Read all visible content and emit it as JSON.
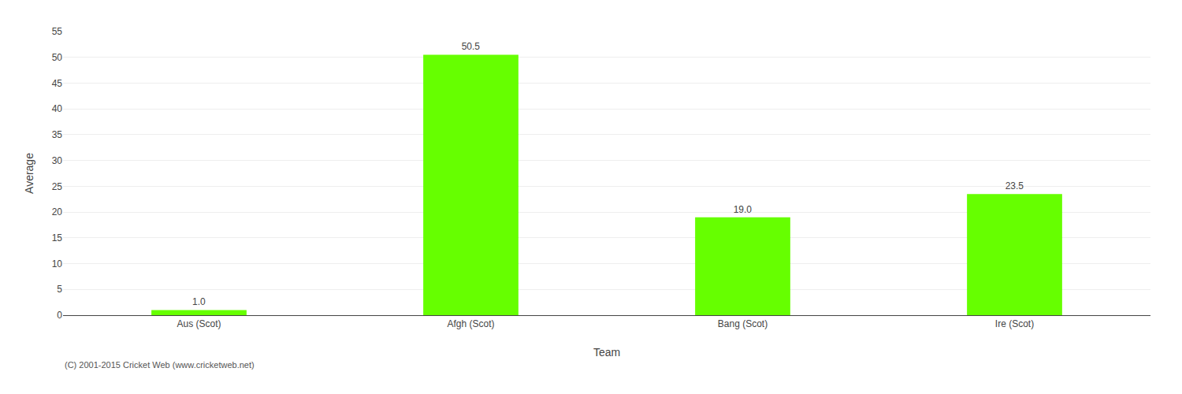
{
  "chart_data": {
    "type": "bar",
    "xlabel": "Team",
    "ylabel": "Average",
    "categories": [
      "Aus (Scot)",
      "Afgh (Scot)",
      "Bang (Scot)",
      "Ire (Scot)"
    ],
    "values": [
      1.0,
      50.5,
      19.0,
      23.5
    ],
    "value_labels": [
      "1.0",
      "50.5",
      "19.0",
      "23.5"
    ],
    "data_labels": true,
    "color": "#66ff00",
    "ylim": [
      0,
      55
    ],
    "yticks": [
      0,
      5,
      10,
      15,
      20,
      25,
      30,
      35,
      40,
      45,
      50,
      55
    ],
    "grid": true,
    "annotations": [
      "(C) 2001-2015 Cricket Web (www.cricketweb.net)"
    ]
  }
}
